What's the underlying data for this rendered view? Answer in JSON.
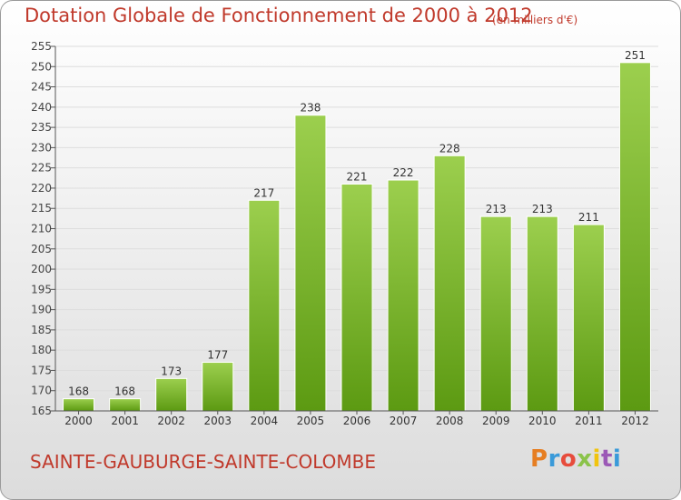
{
  "header": {
    "title": "Dotation Globale de Fonctionnement de 2000 à 2012",
    "subtitle": "(en milliers d'€)"
  },
  "footer": {
    "commune": "SAINTE-GAUBURGE-SAINTE-COLOMBE",
    "logo": "Proxiti",
    "logo_colors": [
      "#e67e22",
      "#3a9ad9",
      "#e74c3c",
      "#8bc34a",
      "#f1c40f",
      "#9b59b6",
      "#3a9ad9"
    ]
  },
  "colors": {
    "bar_top": "#9ccf4e",
    "bar_bottom": "#5c9a12",
    "text_accent": "#c0392b",
    "grid": "#dddddd"
  },
  "chart_data": {
    "type": "bar",
    "categories": [
      "2000",
      "2001",
      "2002",
      "2003",
      "2004",
      "2005",
      "2006",
      "2007",
      "2008",
      "2009",
      "2010",
      "2011",
      "2012"
    ],
    "values": [
      168,
      168,
      173,
      177,
      217,
      238,
      221,
      222,
      228,
      213,
      213,
      211,
      251
    ],
    "title": "Dotation Globale de Fonctionnement de 2000 à 2012",
    "subtitle": "(en milliers d'€)",
    "xlabel": "",
    "ylabel": "",
    "ylim": [
      165,
      255
    ],
    "yticks": [
      165,
      170,
      175,
      180,
      185,
      190,
      195,
      200,
      205,
      210,
      215,
      220,
      225,
      230,
      235,
      240,
      245,
      250,
      255
    ],
    "grid": true,
    "legend": "none"
  }
}
